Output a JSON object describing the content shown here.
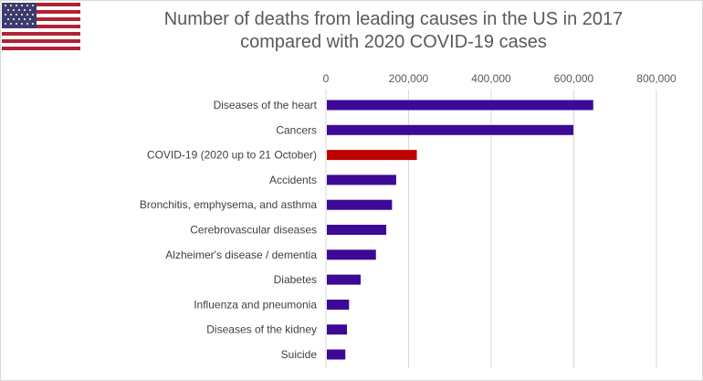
{
  "title_line1": "Number of deaths from leading causes in the US in 2017",
  "title_line2": "compared with 2020 COVID-19 cases",
  "flag_icon": "us-flag-icon",
  "colors": {
    "bar": "#3c0a96",
    "highlight": "#c00000",
    "grid": "#d9d9d9",
    "text": "#595959"
  },
  "chart_data": {
    "type": "bar",
    "orientation": "horizontal",
    "title": "Number of deaths from leading causes in the US in 2017 compared with 2020 COVID-19 cases",
    "xlabel": "",
    "ylabel": "",
    "xlim": [
      0,
      800000
    ],
    "xticks": [
      0,
      200000,
      400000,
      600000,
      800000
    ],
    "xtick_labels": [
      "0",
      "200,000",
      "400,000",
      "600,000",
      "800,000"
    ],
    "x_axis_position": "top",
    "grid": true,
    "legend": false,
    "categories": [
      "Diseases of the heart",
      "Cancers",
      "COVID-19 (2020 up to 21 October)",
      "Accidents",
      "Bronchitis, emphysema, and asthma",
      "Cerebrovascular diseases",
      "Alzheimer's disease / dementia",
      "Diabetes",
      "Influenza and pneumonia",
      "Diseases of the kidney",
      "Suicide"
    ],
    "values": [
      647000,
      599000,
      220000,
      170000,
      160000,
      146000,
      121000,
      84000,
      56000,
      51000,
      47000
    ],
    "highlight_category": "COVID-19 (2020 up to 21 October)"
  }
}
